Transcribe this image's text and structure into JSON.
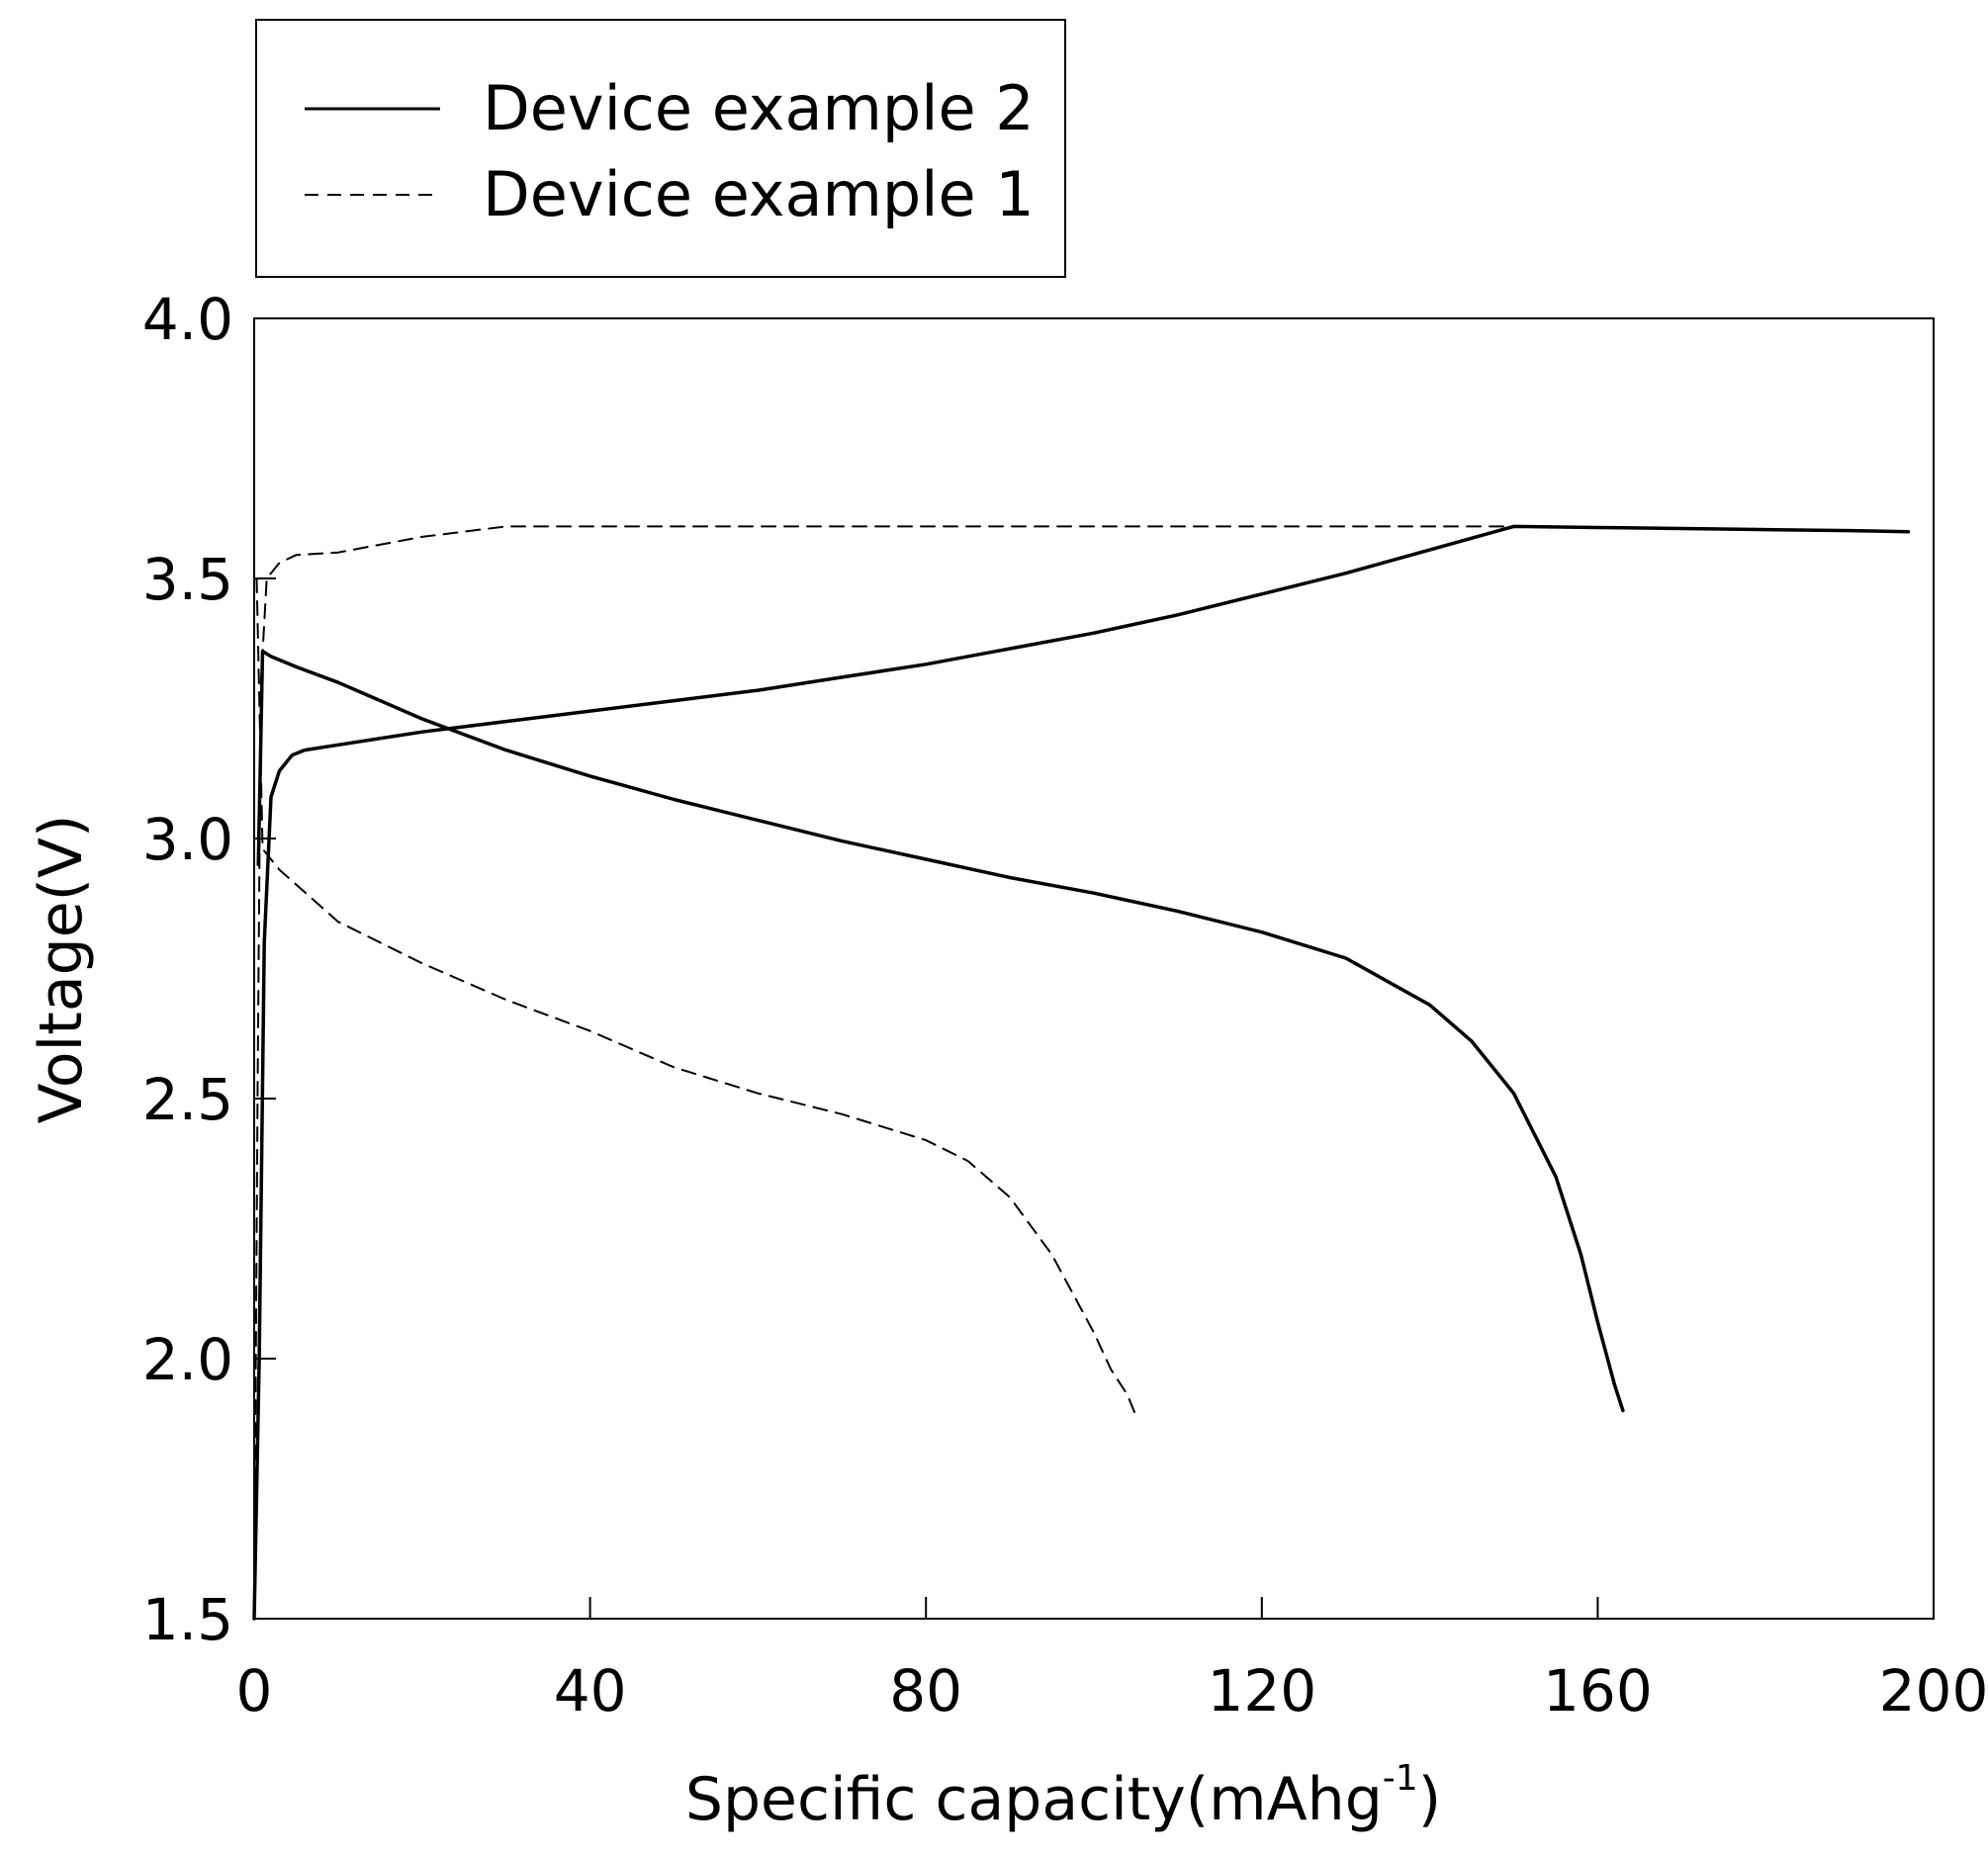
{
  "chart_data": {
    "type": "line",
    "xlabel": "Specific capacity(mAhg",
    "xlabel_superscript": "-1",
    "xlabel_suffix": ")",
    "ylabel": "Voltage(V)",
    "xlim": [
      0,
      200
    ],
    "ylim": [
      1.5,
      4.0
    ],
    "x_ticks": [
      0,
      40,
      80,
      120,
      160,
      200
    ],
    "y_ticks": [
      1.5,
      2.0,
      2.5,
      3.0,
      3.5,
      4.0
    ],
    "x_tick_labels": [
      "0",
      "40",
      "80",
      "120",
      "160",
      "200"
    ],
    "y_tick_labels": [
      "1.5",
      "2.0",
      "2.5",
      "3.0",
      "3.5",
      "4.0"
    ],
    "grid": false,
    "legend_position": "top-left, outside above plot",
    "legend": [
      {
        "label": "Device example 2",
        "style": "solid"
      },
      {
        "label": "Device example 1",
        "style": "dashed"
      }
    ],
    "series": [
      {
        "name": "Device example 2",
        "style": "solid",
        "curve": "charge",
        "x": [
          0.0,
          0.6,
          1.2,
          2.0,
          3.0,
          4.5,
          6.0,
          10,
          20,
          30,
          40,
          50,
          60,
          70,
          80,
          90,
          100,
          110,
          120,
          130,
          140,
          150,
          160,
          170,
          180,
          190,
          197
        ],
        "y": [
          1.5,
          2.0,
          2.8,
          3.08,
          3.13,
          3.16,
          3.17,
          3.18,
          3.205,
          3.225,
          3.245,
          3.265,
          3.285,
          3.31,
          3.335,
          3.365,
          3.395,
          3.43,
          3.47,
          3.51,
          3.555,
          3.6,
          3.598,
          3.596,
          3.594,
          3.592,
          3.59
        ]
      },
      {
        "name": "Device example 2",
        "style": "solid",
        "curve": "discharge",
        "x": [
          0.5,
          1.0,
          2.0,
          5,
          10,
          20,
          30,
          40,
          50,
          60,
          70,
          80,
          90,
          100,
          110,
          120,
          130,
          140,
          145,
          150,
          155,
          158,
          160,
          162,
          163
        ],
        "y": [
          2.95,
          3.36,
          3.35,
          3.33,
          3.3,
          3.23,
          3.17,
          3.12,
          3.075,
          3.035,
          2.995,
          2.96,
          2.925,
          2.895,
          2.86,
          2.82,
          2.77,
          2.68,
          2.61,
          2.51,
          2.35,
          2.2,
          2.07,
          1.95,
          1.9
        ]
      },
      {
        "name": "Device example 1",
        "style": "dashed",
        "curve": "charge",
        "x": [
          0.0,
          0.4,
          0.8,
          1.5,
          3,
          5,
          10,
          20,
          30,
          40,
          60,
          80,
          100,
          120,
          140,
          150
        ],
        "y": [
          1.5,
          2.5,
          3.3,
          3.5,
          3.53,
          3.545,
          3.55,
          3.58,
          3.6,
          3.6,
          3.6,
          3.6,
          3.6,
          3.6,
          3.6,
          3.6
        ]
      },
      {
        "name": "Device example 1",
        "style": "dashed",
        "curve": "discharge",
        "x": [
          0.3,
          1.0,
          3,
          10,
          20,
          30,
          40,
          50,
          60,
          70,
          80,
          85,
          90,
          95,
          100,
          102,
          104,
          105
        ],
        "y": [
          3.5,
          2.98,
          2.94,
          2.84,
          2.76,
          2.69,
          2.63,
          2.56,
          2.51,
          2.47,
          2.42,
          2.38,
          2.31,
          2.2,
          2.05,
          1.98,
          1.93,
          1.89
        ]
      }
    ]
  }
}
